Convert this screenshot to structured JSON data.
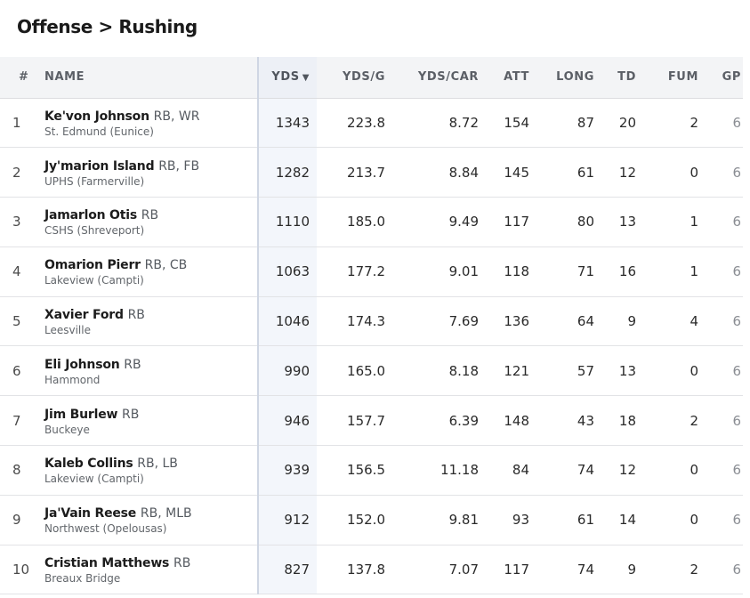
{
  "breadcrumb": "Offense > Rushing",
  "columns": {
    "rank": "#",
    "name": "NAME",
    "yds": "YDS",
    "sort_indicator": "▼",
    "yds_g": "YDS/G",
    "yds_car": "YDS/CAR",
    "att": "ATT",
    "long": "LONG",
    "td": "TD",
    "fum": "FUM",
    "gp": "GP"
  },
  "players": [
    {
      "rank": "1",
      "name": "Ke'von Johnson",
      "pos": "RB, WR",
      "school": "St. Edmund (Eunice)",
      "yds": "1343",
      "yds_g": "223.8",
      "yds_car": "8.72",
      "att": "154",
      "long": "87",
      "td": "20",
      "fum": "2",
      "gp": "6"
    },
    {
      "rank": "2",
      "name": "Jy'marion Island",
      "pos": "RB, FB",
      "school": "UPHS (Farmerville)",
      "yds": "1282",
      "yds_g": "213.7",
      "yds_car": "8.84",
      "att": "145",
      "long": "61",
      "td": "12",
      "fum": "0",
      "gp": "6"
    },
    {
      "rank": "3",
      "name": "Jamarlon Otis",
      "pos": "RB",
      "school": "CSHS (Shreveport)",
      "yds": "1110",
      "yds_g": "185.0",
      "yds_car": "9.49",
      "att": "117",
      "long": "80",
      "td": "13",
      "fum": "1",
      "gp": "6"
    },
    {
      "rank": "4",
      "name": "Omarion Pierr",
      "pos": "RB, CB",
      "school": "Lakeview (Campti)",
      "yds": "1063",
      "yds_g": "177.2",
      "yds_car": "9.01",
      "att": "118",
      "long": "71",
      "td": "16",
      "fum": "1",
      "gp": "6"
    },
    {
      "rank": "5",
      "name": "Xavier Ford",
      "pos": "RB",
      "school": "Leesville",
      "yds": "1046",
      "yds_g": "174.3",
      "yds_car": "7.69",
      "att": "136",
      "long": "64",
      "td": "9",
      "fum": "4",
      "gp": "6"
    },
    {
      "rank": "6",
      "name": "Eli Johnson",
      "pos": "RB",
      "school": "Hammond",
      "yds": "990",
      "yds_g": "165.0",
      "yds_car": "8.18",
      "att": "121",
      "long": "57",
      "td": "13",
      "fum": "0",
      "gp": "6"
    },
    {
      "rank": "7",
      "name": "Jim Burlew",
      "pos": "RB",
      "school": "Buckeye",
      "yds": "946",
      "yds_g": "157.7",
      "yds_car": "6.39",
      "att": "148",
      "long": "43",
      "td": "18",
      "fum": "2",
      "gp": "6"
    },
    {
      "rank": "8",
      "name": "Kaleb Collins",
      "pos": "RB, LB",
      "school": "Lakeview (Campti)",
      "yds": "939",
      "yds_g": "156.5",
      "yds_car": "11.18",
      "att": "84",
      "long": "74",
      "td": "12",
      "fum": "0",
      "gp": "6"
    },
    {
      "rank": "9",
      "name": "Ja'Vain Reese",
      "pos": "RB, MLB",
      "school": "Northwest (Opelousas)",
      "yds": "912",
      "yds_g": "152.0",
      "yds_car": "9.81",
      "att": "93",
      "long": "61",
      "td": "14",
      "fum": "0",
      "gp": "6"
    },
    {
      "rank": "10",
      "name": "Cristian Matthews",
      "pos": "RB",
      "school": "Breaux Bridge",
      "yds": "827",
      "yds_g": "137.8",
      "yds_car": "7.07",
      "att": "117",
      "long": "74",
      "td": "9",
      "fum": "2",
      "gp": "6"
    }
  ]
}
